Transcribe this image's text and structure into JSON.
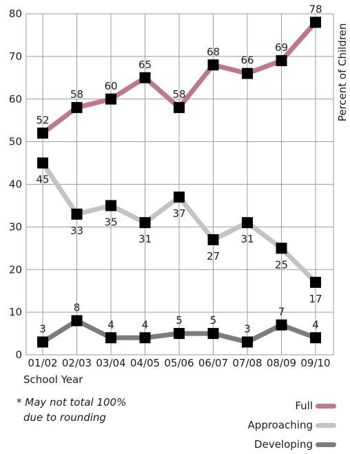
{
  "chart_data": {
    "type": "line",
    "categories": [
      "01/02",
      "02/03",
      "03/04",
      "04/05",
      "05/06",
      "06/07",
      "07/08",
      "08/09",
      "09/10"
    ],
    "series": [
      {
        "name": "Full",
        "values": [
          52,
          58,
          60,
          65,
          58,
          68,
          66,
          69,
          78
        ],
        "color": "#c0768c",
        "label_pos": "above"
      },
      {
        "name": "Approaching",
        "values": [
          45,
          33,
          35,
          31,
          37,
          27,
          31,
          25,
          17
        ],
        "color": "#c3c3c3",
        "label_pos": "below"
      },
      {
        "name": "Developing",
        "values": [
          3,
          8,
          4,
          4,
          5,
          5,
          3,
          7,
          4
        ],
        "color": "#7c7c7f",
        "label_pos": "above"
      }
    ],
    "xlabel": "School Year",
    "ylabel": "Percent of Children",
    "ylim": [
      0,
      80
    ],
    "yticks": [
      0,
      10,
      20,
      30,
      40,
      50,
      60,
      70,
      80
    ],
    "grid": true,
    "marker": "square",
    "marker_color": "#000000",
    "legend_position": "bottom-right"
  },
  "note": {
    "line1": "* May not total 100%",
    "line2": "due to rounding"
  }
}
